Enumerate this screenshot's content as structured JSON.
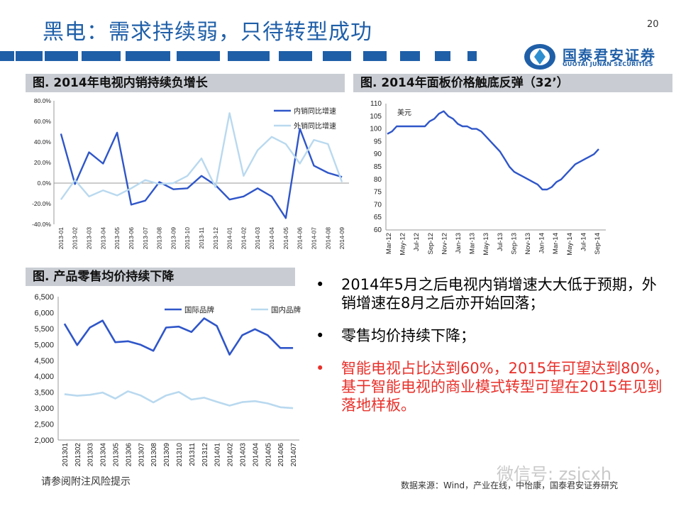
{
  "slide": {
    "title": "黑电：需求持续弱，只待转型成功",
    "page_number": "20"
  },
  "logo": {
    "cn": "国泰君安证券",
    "en": "GUOTAI JUNAN SECURITIES"
  },
  "colors": {
    "brand_blue": "#1f5fa8",
    "series_dark": "#2f56c9",
    "series_light": "#b9d9ef",
    "highlight_red": "#e8302a"
  },
  "headers": {
    "chart1": "图. 2014年电视内销持续负增长",
    "chart2": "图. 2014年面板价格触底反弹（32’）",
    "chart3": "图. 产品零售均价持续下降"
  },
  "bullets": [
    {
      "text": "2014年5月之后电视内销增速大大低于预期，外销增速在8月之后亦开始回落；"
    },
    {
      "text": "零售均价持续下降；"
    },
    {
      "text": "智能电视占比达到60%，2015年可望达到80%，基于智能电视的商业模式转型可望在2015年见到落地样板。"
    }
  ],
  "bullet_glyph": "•",
  "footer": {
    "left": "请参阅附注风险提示",
    "right": "数据来源：Wind，产业在线，中怡康，国泰君安证券研究",
    "watermark": "微信号: zsjcxh"
  },
  "chart_data": [
    {
      "type": "line",
      "title": "图. 2014年电视内销持续负增长",
      "categories": [
        "2013-01",
        "2013-02",
        "2013-03",
        "2013-04",
        "2013-05",
        "2013-06",
        "2013-07",
        "2013-08",
        "2013-09",
        "2013-10",
        "2013-11",
        "2013-12",
        "2014-01",
        "2014-02",
        "2014-03",
        "2014-04",
        "2014-05",
        "2014-06",
        "2014-07",
        "2014-08",
        "2014-09"
      ],
      "series": [
        {
          "name": "内销同比增速",
          "values": [
            48,
            -1,
            30,
            19,
            49,
            -21,
            -17,
            1,
            -6,
            -5,
            7,
            -2,
            -16,
            -13,
            -5,
            -13,
            -34,
            53,
            17,
            10,
            6
          ]
        },
        {
          "name": "外销同比增速",
          "values": [
            -16,
            3,
            -13,
            -7,
            -12,
            -5,
            3,
            -1,
            0,
            7,
            24,
            -4,
            68,
            7,
            32,
            45,
            38,
            19,
            42,
            38,
            1
          ]
        }
      ],
      "ylim": [
        -40,
        80
      ],
      "yticks": [
        "80.0%",
        "60.0%",
        "40.0%",
        "20.0%",
        "0.0%",
        "-20.0%",
        "-40.0%"
      ],
      "legend": "top-right"
    },
    {
      "type": "line",
      "title": "图. 2014年面板价格触底反弹（32’）",
      "ylabel": "美元",
      "xticks": [
        "Mar-12",
        "May-12",
        "Jul-12",
        "Sep-12",
        "Nov-12",
        "Jan-13",
        "Mar-13",
        "May-13",
        "Jul-13",
        "Sep-13",
        "Nov-13",
        "Jan-14",
        "Mar-14",
        "May-14",
        "Jul-14",
        "Sep-14"
      ],
      "yticks": [
        "110",
        "105",
        "100",
        "95",
        "90",
        "85",
        "80",
        "75",
        "70",
        "65",
        "60"
      ],
      "ylim": [
        60,
        110
      ],
      "series": [
        {
          "name": "panel_price",
          "values": [
            98,
            99,
            101,
            101,
            101,
            101,
            101,
            101,
            101,
            103,
            104,
            106,
            107,
            105,
            104,
            102,
            101,
            101,
            100,
            100,
            99,
            97,
            95,
            93,
            91,
            88,
            85,
            83,
            82,
            81,
            80,
            79,
            78,
            76,
            76,
            77,
            79,
            80,
            82,
            84,
            86,
            87,
            88,
            89,
            90,
            92
          ]
        }
      ]
    },
    {
      "type": "line",
      "title": "图. 产品零售均价持续下降",
      "categories": [
        "201301",
        "201302",
        "201303",
        "201304",
        "201305",
        "201306",
        "201307",
        "201308",
        "201309",
        "201310",
        "201311",
        "201312",
        "201401",
        "201402",
        "201403",
        "201404",
        "201405",
        "201406",
        "201407"
      ],
      "yticks": [
        "6,500",
        "6,000",
        "5,500",
        "5,000",
        "4,500",
        "4,000",
        "3,500",
        "3,000",
        "2,500",
        "2,000"
      ],
      "ylim": [
        2000,
        6500
      ],
      "series": [
        {
          "name": "国际品牌",
          "values": [
            5650,
            4980,
            5530,
            5750,
            5070,
            5100,
            4990,
            4800,
            5530,
            5560,
            5390,
            5820,
            5580,
            4680,
            5290,
            5480,
            5290,
            4890,
            4890
          ]
        },
        {
          "name": "国内品牌",
          "values": [
            3440,
            3390,
            3420,
            3490,
            3300,
            3530,
            3400,
            3180,
            3400,
            3510,
            3270,
            3330,
            3200,
            3080,
            3190,
            3220,
            3150,
            3030,
            3000
          ]
        }
      ],
      "legend": "top"
    }
  ]
}
